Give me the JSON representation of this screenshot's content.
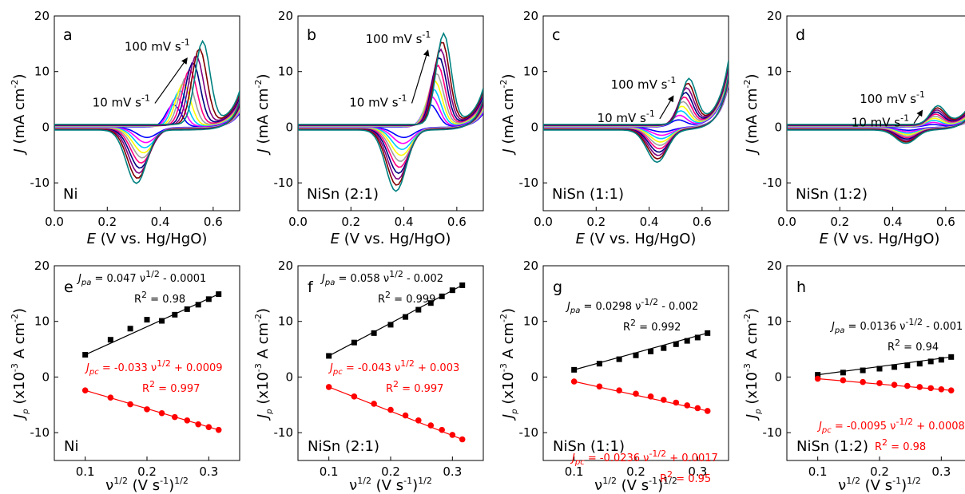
{
  "figure": {
    "cv_xlabel": {
      "sym": "E",
      "rest": " (V vs. Hg/HgO)"
    },
    "cv_ylabel": {
      "sym": "J",
      "rest": " (mA cm",
      "sup": "-2",
      "close": ")"
    },
    "rate_xlabel": {
      "nu": "ν",
      "sup1": "1/2",
      "mid": " (V s",
      "sup2": "-1",
      "close": ")",
      "sup3": "1/2"
    },
    "rate_ylabel": {
      "sym": "J",
      "sub": "p",
      "rest": " (x10",
      "sup1": "-3",
      "mid": " A cm",
      "sup2": "-2",
      "close": ")"
    },
    "colors": {
      "axes": "#000000",
      "anodic_fit": "#000000",
      "cathodic_fit": "#ff0000"
    },
    "cv_series_colors": [
      "#0000ff",
      "#ff00ff",
      "#00c8ff",
      "#ffff00",
      "#a0a0a0",
      "#ff0080",
      "#000080",
      "#800080",
      "#800000",
      "#008080"
    ]
  },
  "chart_data": [
    {
      "id": "a",
      "type": "line",
      "letter": "a",
      "sample": "Ni",
      "xlim": [
        0.0,
        0.7
      ],
      "ylim": [
        -15,
        20
      ],
      "x_ticks": [
        "0.0",
        "0.2",
        "0.4",
        "0.6"
      ],
      "x_tick_values": [
        0.0,
        0.2,
        0.4,
        0.6
      ],
      "y_ticks": [
        "-10",
        "0",
        "10",
        "20"
      ],
      "y_tick_values": [
        -10,
        0,
        10,
        20
      ],
      "scan_rate_high": {
        "value": "100 mV s",
        "unit_sup": "-1"
      },
      "scan_rate_low": {
        "value": "10 mV s",
        "unit_sup": "-1"
      },
      "cv_model": {
        "ox_peak_x": [
          0.45,
          0.56
        ],
        "ox_peak_y": [
          4.0,
          14.8
        ],
        "red_peak_x": [
          0.35,
          0.31
        ],
        "red_peak_y": [
          -1.8,
          -9.6
        ],
        "end_current": [
          3.0,
          6.0
        ]
      }
    },
    {
      "id": "b",
      "type": "line",
      "letter": "b",
      "sample": "NiSn (2:1)",
      "xlim": [
        0.0,
        0.7
      ],
      "ylim": [
        -15,
        20
      ],
      "x_ticks": [
        "0.0",
        "0.2",
        "0.4",
        "0.6"
      ],
      "x_tick_values": [
        0.0,
        0.2,
        0.4,
        0.6
      ],
      "y_ticks": [
        "-10",
        "0",
        "10",
        "20"
      ],
      "y_tick_values": [
        -10,
        0,
        10,
        20
      ],
      "scan_rate_high": {
        "value": "100 mV s",
        "unit_sup": "-1"
      },
      "scan_rate_low": {
        "value": "10 mV s",
        "unit_sup": "-1"
      },
      "cv_model": {
        "ox_peak_x": [
          0.5,
          0.55
        ],
        "ox_peak_y": [
          4.0,
          16.2
        ],
        "red_peak_x": [
          0.4,
          0.37
        ],
        "red_peak_y": [
          -1.8,
          -11.0
        ],
        "end_current": [
          3.0,
          6.5
        ]
      }
    },
    {
      "id": "c",
      "type": "line",
      "letter": "c",
      "sample": "NiSn (1:1)",
      "xlim": [
        0.0,
        0.7
      ],
      "ylim": [
        -15,
        20
      ],
      "x_ticks": [
        "0.0",
        "0.2",
        "0.4",
        "0.6"
      ],
      "x_tick_values": [
        0.0,
        0.2,
        0.4,
        0.6
      ],
      "y_ticks": [
        "-10",
        "0",
        "10",
        "20"
      ],
      "y_tick_values": [
        -10,
        0,
        10,
        20
      ],
      "scan_rate_high": {
        "value": "100 mV s",
        "unit_sup": "-1"
      },
      "scan_rate_low": {
        "value": "10 mV s",
        "unit_sup": "-1"
      },
      "cv_model": {
        "ox_peak_x": [
          0.51,
          0.55
        ],
        "ox_peak_y": [
          1.2,
          8.0
        ],
        "red_peak_x": [
          0.45,
          0.43
        ],
        "red_peak_y": [
          -0.8,
          -5.8
        ],
        "end_current": [
          9.0,
          11.5
        ]
      }
    },
    {
      "id": "d",
      "type": "line",
      "letter": "d",
      "sample": "NiSn (1:2)",
      "xlim": [
        0.0,
        0.7
      ],
      "ylim": [
        -15,
        20
      ],
      "x_ticks": [
        "0.0",
        "0.2",
        "0.4",
        "0.6"
      ],
      "x_tick_values": [
        0.0,
        0.2,
        0.4,
        0.6
      ],
      "y_ticks": [
        "-10",
        "0",
        "10",
        "20"
      ],
      "y_tick_values": [
        -10,
        0,
        10,
        20
      ],
      "scan_rate_high": {
        "value": "100 mV s",
        "unit_sup": "-1"
      },
      "scan_rate_low": {
        "value": "10 mV s",
        "unit_sup": "-1"
      },
      "cv_model": {
        "ox_peak_x": [
          0.55,
          0.57
        ],
        "ox_peak_y": [
          0.4,
          3.2
        ],
        "red_peak_x": [
          0.46,
          0.45
        ],
        "red_peak_y": [
          -0.5,
          -2.4
        ],
        "end_current": [
          2.0,
          4.5
        ]
      }
    },
    {
      "id": "e",
      "type": "scatter",
      "letter": "e",
      "sample": "Ni",
      "xlim": [
        0.05,
        0.35
      ],
      "ylim": [
        -15,
        20
      ],
      "x_ticks": [
        "0.1",
        "0.2",
        "0.3"
      ],
      "x_tick_values": [
        0.1,
        0.2,
        0.3
      ],
      "y_ticks": [
        "-10",
        "0",
        "10",
        "20"
      ],
      "y_tick_values": [
        -10,
        0,
        10,
        20
      ],
      "x": [
        0.1,
        0.141,
        0.173,
        0.2,
        0.224,
        0.245,
        0.265,
        0.283,
        0.3,
        0.316
      ],
      "series": [
        {
          "color": "#000000",
          "marker": "square",
          "values": [
            4.0,
            6.7,
            8.7,
            10.3,
            10.1,
            11.2,
            12.2,
            13.0,
            14.0,
            14.9
          ],
          "fit": [
            -0.0001,
            0.047
          ],
          "eq_prefix": "J",
          "eq_sub": "pa",
          "eq_mid": " = 0.047 ν",
          "eq_sup": "1/2",
          "eq_tail": " - 0.0001",
          "r2_text": "R",
          "r2_sup": "2",
          "r2_val": " = 0.98"
        },
        {
          "color": "#ff0000",
          "marker": "circle",
          "values": [
            -2.4,
            -3.7,
            -4.9,
            -5.8,
            -6.5,
            -7.2,
            -7.8,
            -8.5,
            -9.0,
            -9.5
          ],
          "fit": [
            0.0009,
            -0.033
          ],
          "eq_prefix": "J",
          "eq_sub": "pc",
          "eq_mid": " = -0.033 ν",
          "eq_sup": "1/2",
          "eq_tail": " + 0.0009",
          "r2_text": "R",
          "r2_sup": "2",
          "r2_val": " = 0.997"
        }
      ]
    },
    {
      "id": "f",
      "type": "scatter",
      "letter": "f",
      "sample": "NiSn (2:1)",
      "xlim": [
        0.05,
        0.35
      ],
      "ylim": [
        -15,
        20
      ],
      "x_ticks": [
        "0.1",
        "0.2",
        "0.3"
      ],
      "x_tick_values": [
        0.1,
        0.2,
        0.3
      ],
      "y_ticks": [
        "-10",
        "0",
        "10",
        "20"
      ],
      "y_tick_values": [
        -10,
        0,
        10,
        20
      ],
      "x": [
        0.1,
        0.141,
        0.173,
        0.2,
        0.224,
        0.245,
        0.265,
        0.283,
        0.3,
        0.316
      ],
      "series": [
        {
          "color": "#000000",
          "marker": "square",
          "values": [
            3.8,
            6.2,
            7.9,
            9.4,
            10.8,
            12.1,
            13.3,
            14.5,
            15.6,
            16.5
          ],
          "fit": [
            -0.002,
            0.058
          ],
          "eq_prefix": "J",
          "eq_sub": "pa",
          "eq_mid": " = 0.058 ν",
          "eq_sup": "1/2",
          "eq_tail": " - 0.002",
          "r2_text": "R",
          "r2_sup": "2",
          "r2_val": " = 0.999"
        },
        {
          "color": "#ff0000",
          "marker": "circle",
          "values": [
            -1.8,
            -3.5,
            -4.8,
            -5.9,
            -6.9,
            -7.8,
            -8.7,
            -9.5,
            -10.4,
            -11.2
          ],
          "fit": [
            0.003,
            -0.043
          ],
          "eq_prefix": "J",
          "eq_sub": "pc",
          "eq_mid": " = -0.043 ν",
          "eq_sup": "1/2",
          "eq_tail": " + 0.003",
          "r2_text": "R",
          "r2_sup": "2",
          "r2_val": " = 0.997"
        }
      ]
    },
    {
      "id": "g",
      "type": "scatter",
      "letter": "g",
      "sample": "NiSn (1:1)",
      "xlim": [
        0.05,
        0.35
      ],
      "ylim": [
        -15,
        20
      ],
      "x_ticks": [
        "0.1",
        "0.2",
        "0.3"
      ],
      "x_tick_values": [
        0.1,
        0.2,
        0.3
      ],
      "y_ticks": [
        "-10",
        "0",
        "10",
        "20"
      ],
      "y_tick_values": [
        -10,
        0,
        10,
        20
      ],
      "x": [
        0.1,
        0.141,
        0.173,
        0.2,
        0.224,
        0.245,
        0.265,
        0.283,
        0.3,
        0.316
      ],
      "series": [
        {
          "color": "#000000",
          "marker": "square",
          "values": [
            1.3,
            2.4,
            3.2,
            3.9,
            4.6,
            5.2,
            5.9,
            6.5,
            7.1,
            7.9
          ],
          "fit": [
            -0.002,
            0.0298
          ],
          "eq_prefix": "J",
          "eq_sub": "pa",
          "eq_mid": " = 0.0298 ν",
          "eq_sup": "-1/2",
          "eq_tail": " - 0.002",
          "r2_text": "R",
          "r2_sup": "2",
          "r2_val": " = 0.992"
        },
        {
          "color": "#ff0000",
          "marker": "circle",
          "values": [
            -0.8,
            -1.7,
            -2.4,
            -3.0,
            -3.5,
            -4.1,
            -4.6,
            -5.1,
            -5.6,
            -6.1
          ],
          "fit": [
            0.0017,
            -0.0236
          ],
          "eq_prefix": "J",
          "eq_sub": "pc",
          "eq_mid": " = -0.0236 ν",
          "eq_sup": "-1/2",
          "eq_tail": " + 0.0017",
          "r2_text": "R",
          "r2_sup": "2",
          "r2_val": " = 0.95"
        }
      ]
    },
    {
      "id": "h",
      "type": "scatter",
      "letter": "h",
      "sample": "NiSn (1:2)",
      "xlim": [
        0.05,
        0.35
      ],
      "ylim": [
        -15,
        20
      ],
      "x_ticks": [
        "0.1",
        "0.2",
        "0.3"
      ],
      "x_tick_values": [
        0.1,
        0.2,
        0.3
      ],
      "y_ticks": [
        "-10",
        "0",
        "10",
        "20"
      ],
      "y_tick_values": [
        -10,
        0,
        10,
        20
      ],
      "x": [
        0.1,
        0.141,
        0.173,
        0.2,
        0.224,
        0.245,
        0.265,
        0.283,
        0.3,
        0.316
      ],
      "series": [
        {
          "color": "#000000",
          "marker": "square",
          "values": [
            0.4,
            0.8,
            1.2,
            1.5,
            1.8,
            2.1,
            2.4,
            2.8,
            3.1,
            3.6
          ],
          "fit": [
            -0.001,
            0.0136
          ],
          "eq_prefix": "J",
          "eq_sub": "pa",
          "eq_mid": " = 0.0136 ν",
          "eq_sup": "-1/2",
          "eq_tail": " - 0.001",
          "r2_text": "R",
          "r2_sup": "2",
          "r2_val": " = 0.94"
        },
        {
          "color": "#ff0000",
          "marker": "circle",
          "values": [
            -0.3,
            -0.6,
            -0.9,
            -1.1,
            -1.4,
            -1.6,
            -1.8,
            -2.0,
            -2.2,
            -2.4
          ],
          "fit": [
            0.0008,
            -0.0095
          ],
          "eq_prefix": "J",
          "eq_sub": "pc",
          "eq_mid": " = -0.0095 ν",
          "eq_sup": "-1/2",
          "eq_tail": " + 0.0008",
          "r2_text": "R",
          "r2_sup": "2",
          "r2_val": " = 0.98"
        }
      ]
    }
  ]
}
